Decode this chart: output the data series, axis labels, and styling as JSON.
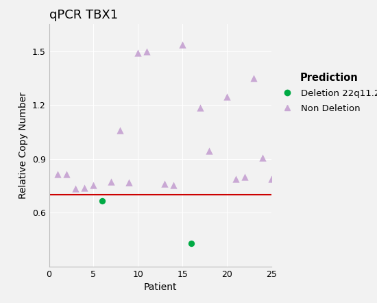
{
  "title": "qPCR TBX1",
  "xlabel": "Patient",
  "ylabel": "Relative Copy Number",
  "xlim": [
    0,
    25
  ],
  "ylim": [
    0.3,
    1.65
  ],
  "yticks": [
    0.6,
    0.9,
    1.2,
    1.5
  ],
  "xticks": [
    0,
    5,
    10,
    15,
    20,
    25
  ],
  "hline_y": 0.7,
  "hline_color": "#cc0000",
  "background_color": "#f2f2f2",
  "grid_color": "#ffffff",
  "deletion_color": "#00aa44",
  "non_deletion_color": "#c9a8d4",
  "deletion_points": [
    [
      6,
      0.665
    ],
    [
      16,
      0.43
    ]
  ],
  "non_deletion_points": [
    [
      1,
      0.815
    ],
    [
      2,
      0.815
    ],
    [
      3,
      0.735
    ],
    [
      4,
      0.74
    ],
    [
      5,
      0.755
    ],
    [
      7,
      0.775
    ],
    [
      8,
      1.06
    ],
    [
      9,
      0.77
    ],
    [
      10,
      1.49
    ],
    [
      11,
      1.5
    ],
    [
      13,
      0.76
    ],
    [
      14,
      0.755
    ],
    [
      15,
      1.535
    ],
    [
      17,
      1.185
    ],
    [
      18,
      0.945
    ],
    [
      20,
      1.245
    ],
    [
      21,
      0.79
    ],
    [
      22,
      0.8
    ],
    [
      23,
      1.35
    ],
    [
      24,
      0.905
    ],
    [
      25,
      0.79
    ]
  ],
  "legend_title": "Prediction",
  "legend_title_fontsize": 10.5,
  "legend_fontsize": 9.5,
  "title_fontsize": 13,
  "axis_label_fontsize": 10,
  "tick_fontsize": 9
}
